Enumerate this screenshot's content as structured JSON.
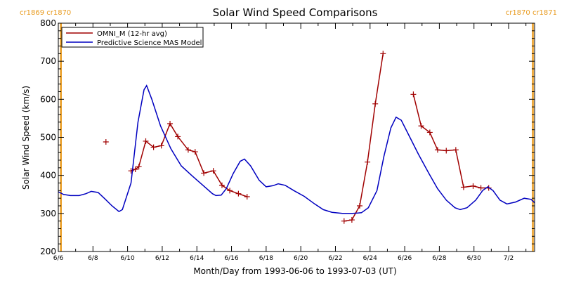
{
  "chart_data": {
    "type": "line",
    "title": "Solar Wind Speed Comparisons",
    "xlabel": "Month/Day from 1993-06-06 to 1993-07-03 (UT)",
    "ylabel": "Solar Wind Speed (km/s)",
    "ylim": [
      200,
      800
    ],
    "y_ticks": [
      "200",
      "300",
      "400",
      "500",
      "600",
      "700",
      "800"
    ],
    "xlim": [
      0,
      27.5
    ],
    "x_ticks": [
      {
        "label": "6/6",
        "day": 0
      },
      {
        "label": "6/8",
        "day": 2
      },
      {
        "label": "6/10",
        "day": 4
      },
      {
        "label": "6/12",
        "day": 6
      },
      {
        "label": "6/14",
        "day": 8
      },
      {
        "label": "6/16",
        "day": 10
      },
      {
        "label": "6/18",
        "day": 12
      },
      {
        "label": "6/20",
        "day": 14
      },
      {
        "label": "6/22",
        "day": 16
      },
      {
        "label": "6/24",
        "day": 18
      },
      {
        "label": "6/26",
        "day": 20
      },
      {
        "label": "6/28",
        "day": 22
      },
      {
        "label": "6/30",
        "day": 24
      },
      {
        "label": "7/2",
        "day": 26
      }
    ],
    "carrington_markers": [
      {
        "label": "cr1869 cr1870",
        "day": 0.15,
        "side": "left",
        "color": "#e89a1e"
      },
      {
        "label": "cr1870 cr1871",
        "day": 27.4,
        "side": "right",
        "color": "#e89a1e"
      }
    ],
    "legend": {
      "position": "top-left"
    },
    "series": [
      {
        "name": "OMNI_M (12-hr avg)",
        "color": "#a00000",
        "markers": true,
        "segments": [
          [
            [
              2.75,
              488
            ]
          ],
          [
            [
              4.2,
              412
            ],
            [
              4.45,
              416
            ],
            [
              4.65,
              423
            ],
            [
              5.05,
              490
            ],
            [
              5.5,
              474
            ],
            [
              5.95,
              478
            ],
            [
              6.45,
              536
            ],
            [
              6.9,
              502
            ],
            [
              7.5,
              467
            ],
            [
              7.9,
              462
            ],
            [
              8.4,
              406
            ],
            [
              8.95,
              412
            ],
            [
              9.45,
              374
            ],
            [
              9.9,
              360
            ],
            [
              10.4,
              352
            ],
            [
              10.9,
              344
            ]
          ]
        ]
      },
      {
        "name": "OMNI_M (12-hr avg)",
        "color": "#a00000",
        "markers": true,
        "legend": false,
        "segments": [
          [
            [
              16.5,
              280
            ],
            [
              16.95,
              283
            ],
            [
              17.4,
              320
            ],
            [
              17.85,
              435
            ],
            [
              18.3,
              588
            ],
            [
              18.75,
              720
            ]
          ],
          [
            [
              20.5,
              613
            ],
            [
              20.95,
              530
            ],
            [
              21.45,
              513
            ],
            [
              21.9,
              467
            ],
            [
              22.4,
              465
            ],
            [
              22.95,
              467
            ],
            [
              23.4,
              369
            ],
            [
              23.95,
              372
            ],
            [
              24.4,
              367
            ],
            [
              24.85,
              367
            ]
          ]
        ]
      },
      {
        "name": "Predictive Science MAS Model",
        "color": "#0000c0",
        "markers": false,
        "segments": [
          [
            [
              0,
              357
            ],
            [
              0.3,
              350
            ],
            [
              0.7,
              347
            ],
            [
              1.2,
              347
            ],
            [
              1.6,
              352
            ],
            [
              1.9,
              358
            ],
            [
              2.3,
              355
            ],
            [
              2.7,
              338
            ],
            [
              3.1,
              320
            ],
            [
              3.5,
              305
            ],
            [
              3.7,
              310
            ],
            [
              4.2,
              380
            ],
            [
              4.6,
              540
            ],
            [
              4.95,
              625
            ],
            [
              5.1,
              636
            ],
            [
              5.4,
              600
            ],
            [
              5.9,
              530
            ],
            [
              6.5,
              470
            ],
            [
              7.1,
              425
            ],
            [
              7.7,
              400
            ],
            [
              8.3,
              376
            ],
            [
              8.9,
              352
            ],
            [
              9.1,
              347
            ],
            [
              9.4,
              348
            ],
            [
              9.7,
              365
            ],
            [
              10.1,
              405
            ],
            [
              10.5,
              437
            ],
            [
              10.75,
              443
            ],
            [
              11.1,
              425
            ],
            [
              11.6,
              387
            ],
            [
              12.0,
              370
            ],
            [
              12.4,
              373
            ],
            [
              12.7,
              378
            ],
            [
              13.1,
              374
            ],
            [
              13.6,
              360
            ],
            [
              14.2,
              345
            ],
            [
              14.8,
              325
            ],
            [
              15.3,
              310
            ],
            [
              15.8,
              303
            ],
            [
              16.4,
              300
            ],
            [
              17.0,
              300
            ],
            [
              17.5,
              302
            ],
            [
              17.9,
              315
            ],
            [
              18.4,
              360
            ],
            [
              18.8,
              450
            ],
            [
              19.2,
              525
            ],
            [
              19.5,
              553
            ],
            [
              19.8,
              545
            ],
            [
              20.3,
              500
            ],
            [
              20.8,
              455
            ],
            [
              21.4,
              405
            ],
            [
              21.9,
              365
            ],
            [
              22.4,
              335
            ],
            [
              22.9,
              315
            ],
            [
              23.2,
              310
            ],
            [
              23.6,
              315
            ],
            [
              24.1,
              335
            ],
            [
              24.5,
              360
            ],
            [
              24.8,
              370
            ],
            [
              25.1,
              360
            ],
            [
              25.5,
              335
            ],
            [
              25.9,
              325
            ],
            [
              26.4,
              330
            ],
            [
              26.9,
              340
            ],
            [
              27.3,
              337
            ],
            [
              27.5,
              328
            ]
          ]
        ]
      }
    ]
  }
}
